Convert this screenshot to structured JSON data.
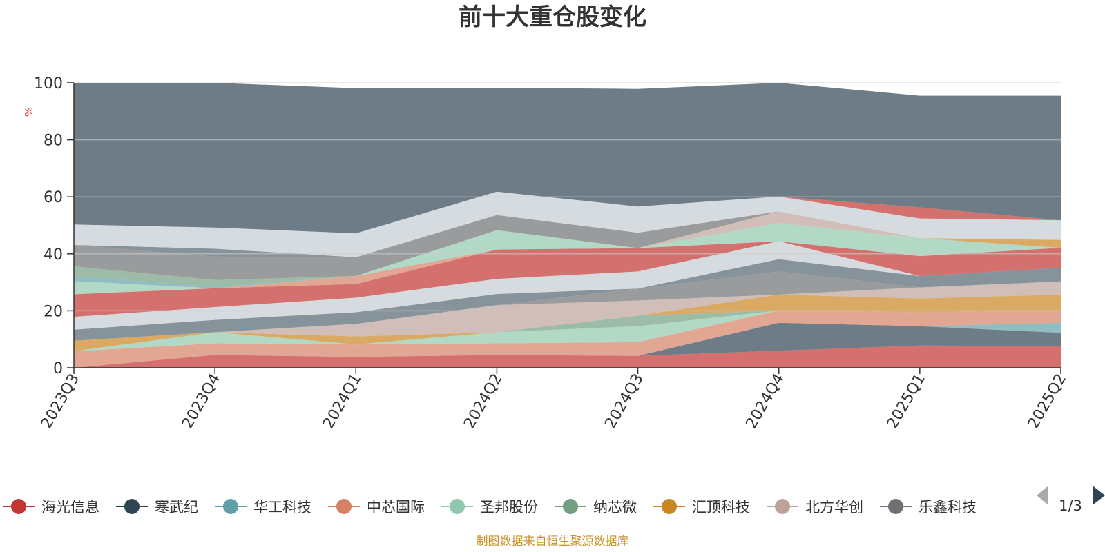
{
  "chart_data": {
    "type": "area",
    "title": "前十大重仓股变化",
    "ylabel": "%",
    "ylim": [
      0,
      100
    ],
    "yticks": [
      0,
      20,
      40,
      60,
      80,
      100
    ],
    "grid": true,
    "legend_position": "bottom",
    "categories": [
      "2023Q3",
      "2023Q4",
      "2024Q1",
      "2024Q2",
      "2024Q3",
      "2024Q4",
      "2025Q1",
      "2025Q2"
    ],
    "layers": [
      {
        "name": "海光信息",
        "color": "#c23531",
        "top": [
          0.0,
          4.5,
          3.8,
          4.5,
          4.2,
          6.0,
          7.8,
          7.6
        ]
      },
      {
        "name": "寒武纪",
        "color": "#2f4554",
        "top": [
          0.0,
          4.5,
          3.8,
          4.5,
          4.2,
          15.8,
          14.6,
          12.3
        ]
      },
      {
        "name": "华工科技",
        "color": "#61a0a8",
        "top": [
          0.0,
          4.5,
          3.8,
          4.5,
          4.2,
          15.8,
          14.6,
          15.8
        ]
      },
      {
        "name": "中芯国际",
        "color": "#d48265",
        "top": [
          5.8,
          8.6,
          8.2,
          8.6,
          9.0,
          20.1,
          19.5,
          20.1
        ]
      },
      {
        "name": "圣邦股份",
        "color": "#91c7ae",
        "top": [
          5.8,
          12.5,
          8.2,
          12.5,
          14.6,
          20.1,
          19.5,
          20.1
        ]
      },
      {
        "name": "纳芯微",
        "color": "#749f83",
        "top": [
          5.8,
          12.5,
          8.2,
          12.5,
          18.3,
          20.1,
          19.5,
          20.1
        ]
      },
      {
        "name": "汇顶科技",
        "color": "#ca8622",
        "top": [
          9.5,
          12.5,
          11.0,
          12.5,
          18.3,
          25.7,
          24.3,
          25.7
        ]
      },
      {
        "name": "北方华创",
        "color": "#bda29a",
        "top": [
          9.5,
          12.5,
          15.4,
          22.0,
          23.6,
          25.7,
          28.2,
          30.3
        ]
      },
      {
        "name": "乐鑫科技",
        "color": "#6e7074",
        "top": [
          9.5,
          12.5,
          15.4,
          22.0,
          27.8,
          33.8,
          28.2,
          30.3
        ]
      },
      {
        "name": "",
        "color": "#546570",
        "top": [
          13.4,
          16.8,
          19.5,
          25.9,
          27.8,
          38.1,
          32.2,
          35.1
        ]
      },
      {
        "name": "",
        "color": "#c4ccd3",
        "top": [
          17.9,
          21.3,
          24.6,
          31.2,
          33.8,
          44.4,
          32.2,
          35.1
        ]
      },
      {
        "name": "",
        "color": "#c23531",
        "top": [
          25.8,
          27.9,
          29.4,
          41.5,
          42.0,
          44.4,
          39.2,
          42.1
        ]
      },
      {
        "name": "",
        "color": "#d48265",
        "top": [
          25.8,
          27.9,
          32.2,
          41.5,
          42.0,
          44.4,
          39.2,
          42.1
        ]
      },
      {
        "name": "",
        "color": "#91c7ae",
        "top": [
          30.4,
          27.9,
          32.2,
          48.3,
          42.0,
          50.8,
          45.5,
          42.1
        ]
      },
      {
        "name": "",
        "color": "#61a0a8",
        "top": [
          32.2,
          28.4,
          32.2,
          48.3,
          42.0,
          50.8,
          45.5,
          42.1
        ]
      },
      {
        "name": "",
        "color": "#749f83",
        "top": [
          35.6,
          30.8,
          32.2,
          48.3,
          42.0,
          50.8,
          45.5,
          42.1
        ]
      },
      {
        "name": "",
        "color": "#ca8622",
        "top": [
          35.6,
          30.8,
          32.2,
          48.3,
          42.0,
          50.8,
          45.5,
          44.9
        ]
      },
      {
        "name": "",
        "color": "#bda29a",
        "top": [
          35.6,
          30.8,
          32.2,
          48.3,
          42.0,
          54.9,
          45.5,
          44.9
        ]
      },
      {
        "name": "",
        "color": "#6e7074",
        "top": [
          43.1,
          39.0,
          38.8,
          53.6,
          47.4,
          54.9,
          45.5,
          44.9
        ]
      },
      {
        "name": "",
        "color": "#546570",
        "top": [
          43.1,
          41.8,
          38.8,
          53.6,
          47.4,
          54.9,
          45.5,
          44.9
        ]
      },
      {
        "name": "",
        "color": "#c4ccd3",
        "top": [
          50.3,
          49.2,
          47.2,
          61.8,
          56.6,
          60.1,
          52.4,
          51.8
        ]
      },
      {
        "name": "",
        "color": "#c23531",
        "top": [
          50.3,
          49.2,
          47.2,
          61.8,
          56.6,
          60.1,
          56.3,
          51.8
        ]
      },
      {
        "name": "",
        "color": "#2f4554",
        "top": [
          100.0,
          100.0,
          98.1,
          98.3,
          97.9,
          100.0,
          95.5,
          95.5
        ]
      }
    ]
  },
  "legend": {
    "items": [
      {
        "label": "海光信息",
        "color": "#c23531"
      },
      {
        "label": "寒武纪",
        "color": "#2f4554"
      },
      {
        "label": "华工科技",
        "color": "#61a0a8"
      },
      {
        "label": "中芯国际",
        "color": "#d48265"
      },
      {
        "label": "圣邦股份",
        "color": "#91c7ae"
      },
      {
        "label": "纳芯微",
        "color": "#749f83"
      },
      {
        "label": "汇顶科技",
        "color": "#ca8622"
      },
      {
        "label": "北方华创",
        "color": "#bda29a"
      },
      {
        "label": "乐鑫科技",
        "color": "#6e7074"
      }
    ],
    "page": "1/3"
  },
  "footer": {
    "source": "制图数据来自恒生聚源数据库"
  },
  "colors": {
    "title": "#333333",
    "axis": "#333333",
    "ylabel": "#e23a3a",
    "source": "#c9922b",
    "grid": "#cccccc"
  }
}
